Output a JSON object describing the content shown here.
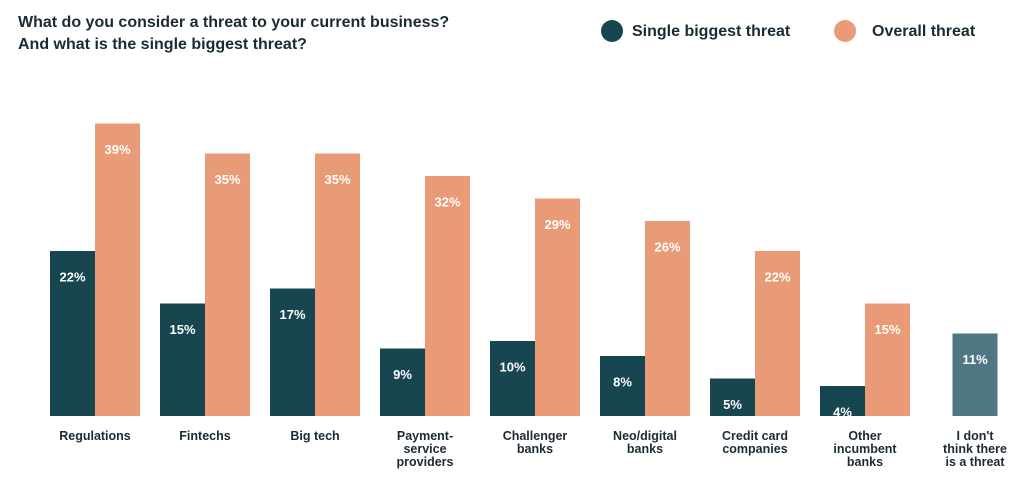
{
  "chart_data": {
    "type": "bar",
    "title": "What do you consider a threat to your current business?\nAnd what is the single biggest threat?",
    "categories": [
      "Regulations",
      "Fintechs",
      "Big tech",
      "Payment-\nservice\nproviders",
      "Challenger\nbanks",
      "Neo/digital\nbanks",
      "Credit card\ncompanies",
      "Other\nincumbent\nbanks",
      "I don't\nthink there\nis a threat"
    ],
    "series": [
      {
        "name": "Single biggest threat",
        "color": "#174650",
        "colors": [
          "#174650",
          "#174650",
          "#174650",
          "#174650",
          "#174650",
          "#174650",
          "#174650",
          "#174650",
          "#4e7683"
        ],
        "values": [
          22,
          15,
          17,
          9,
          10,
          8,
          5,
          4,
          11
        ],
        "value_labels": [
          "22%",
          "15%",
          "17%",
          "9%",
          "10%",
          "8%",
          "5%",
          "4%",
          "11%"
        ]
      },
      {
        "name": "Overall threat",
        "color": "#e99a76",
        "values": [
          39,
          35,
          35,
          32,
          29,
          26,
          22,
          15,
          null
        ],
        "value_labels": [
          "39%",
          "35%",
          "35%",
          "32%",
          "29%",
          "26%",
          "22%",
          "15%",
          null
        ]
      }
    ],
    "legend": "top-right"
  }
}
